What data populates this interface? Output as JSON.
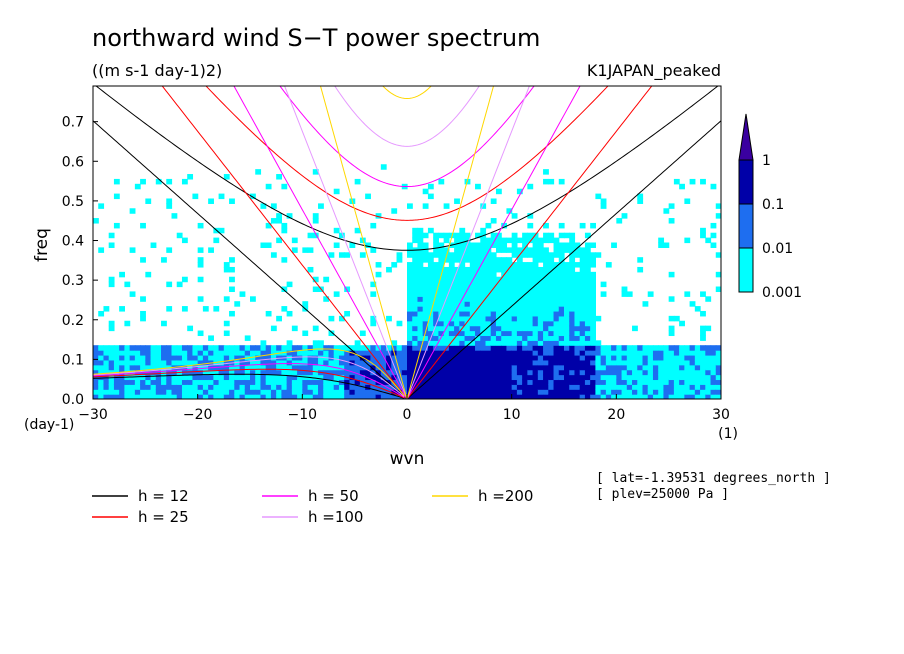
{
  "chart_data": {
    "type": "heatmap",
    "title": "northward wind S−T power spectrum",
    "units_label": "((m s-1 day-1)2)",
    "dataset_label": "K1JAPAN_peaked",
    "xlabel": "wvn",
    "ylabel": "freq",
    "x_unit_label": "(1)",
    "y_unit_label": "(day-1)",
    "xlim": [
      -30,
      30
    ],
    "ylim": [
      0,
      0.79
    ],
    "x_ticks": [
      -30,
      -20,
      -10,
      0,
      10,
      20,
      30
    ],
    "x_tick_labels": [
      "−30",
      "−20",
      "−10",
      "0",
      "10",
      "20",
      "30"
    ],
    "y_ticks": [
      0,
      0.1,
      0.2,
      0.3,
      0.4,
      0.5,
      0.6,
      0.7
    ],
    "y_tick_labels": [
      "0.0",
      "0.1",
      "0.2",
      "0.3",
      "0.4",
      "0.5",
      "0.6",
      "0.7"
    ],
    "colorbar": {
      "levels": [
        "0.001",
        "0.01",
        "0.1",
        "1"
      ],
      "colors": [
        "#00ffff",
        "#1e6ef0",
        "#0000a8",
        "#3a00a0"
      ]
    },
    "dispersion_curves": [
      {
        "label": "h = 12",
        "h": 12,
        "color": "#000000"
      },
      {
        "label": "h = 25",
        "h": 25,
        "color": "#ff0000"
      },
      {
        "label": "h = 50",
        "h": 50,
        "color": "#ff00ff"
      },
      {
        "label": "h =100",
        "h": 100,
        "color": "#e699ff"
      },
      {
        "label": "h =200",
        "h": 200,
        "color": "#ffd700"
      }
    ],
    "info_lines": [
      "[ lat=-1.39531 degrees_north ]",
      "[ plev=25000 Pa ]"
    ]
  }
}
